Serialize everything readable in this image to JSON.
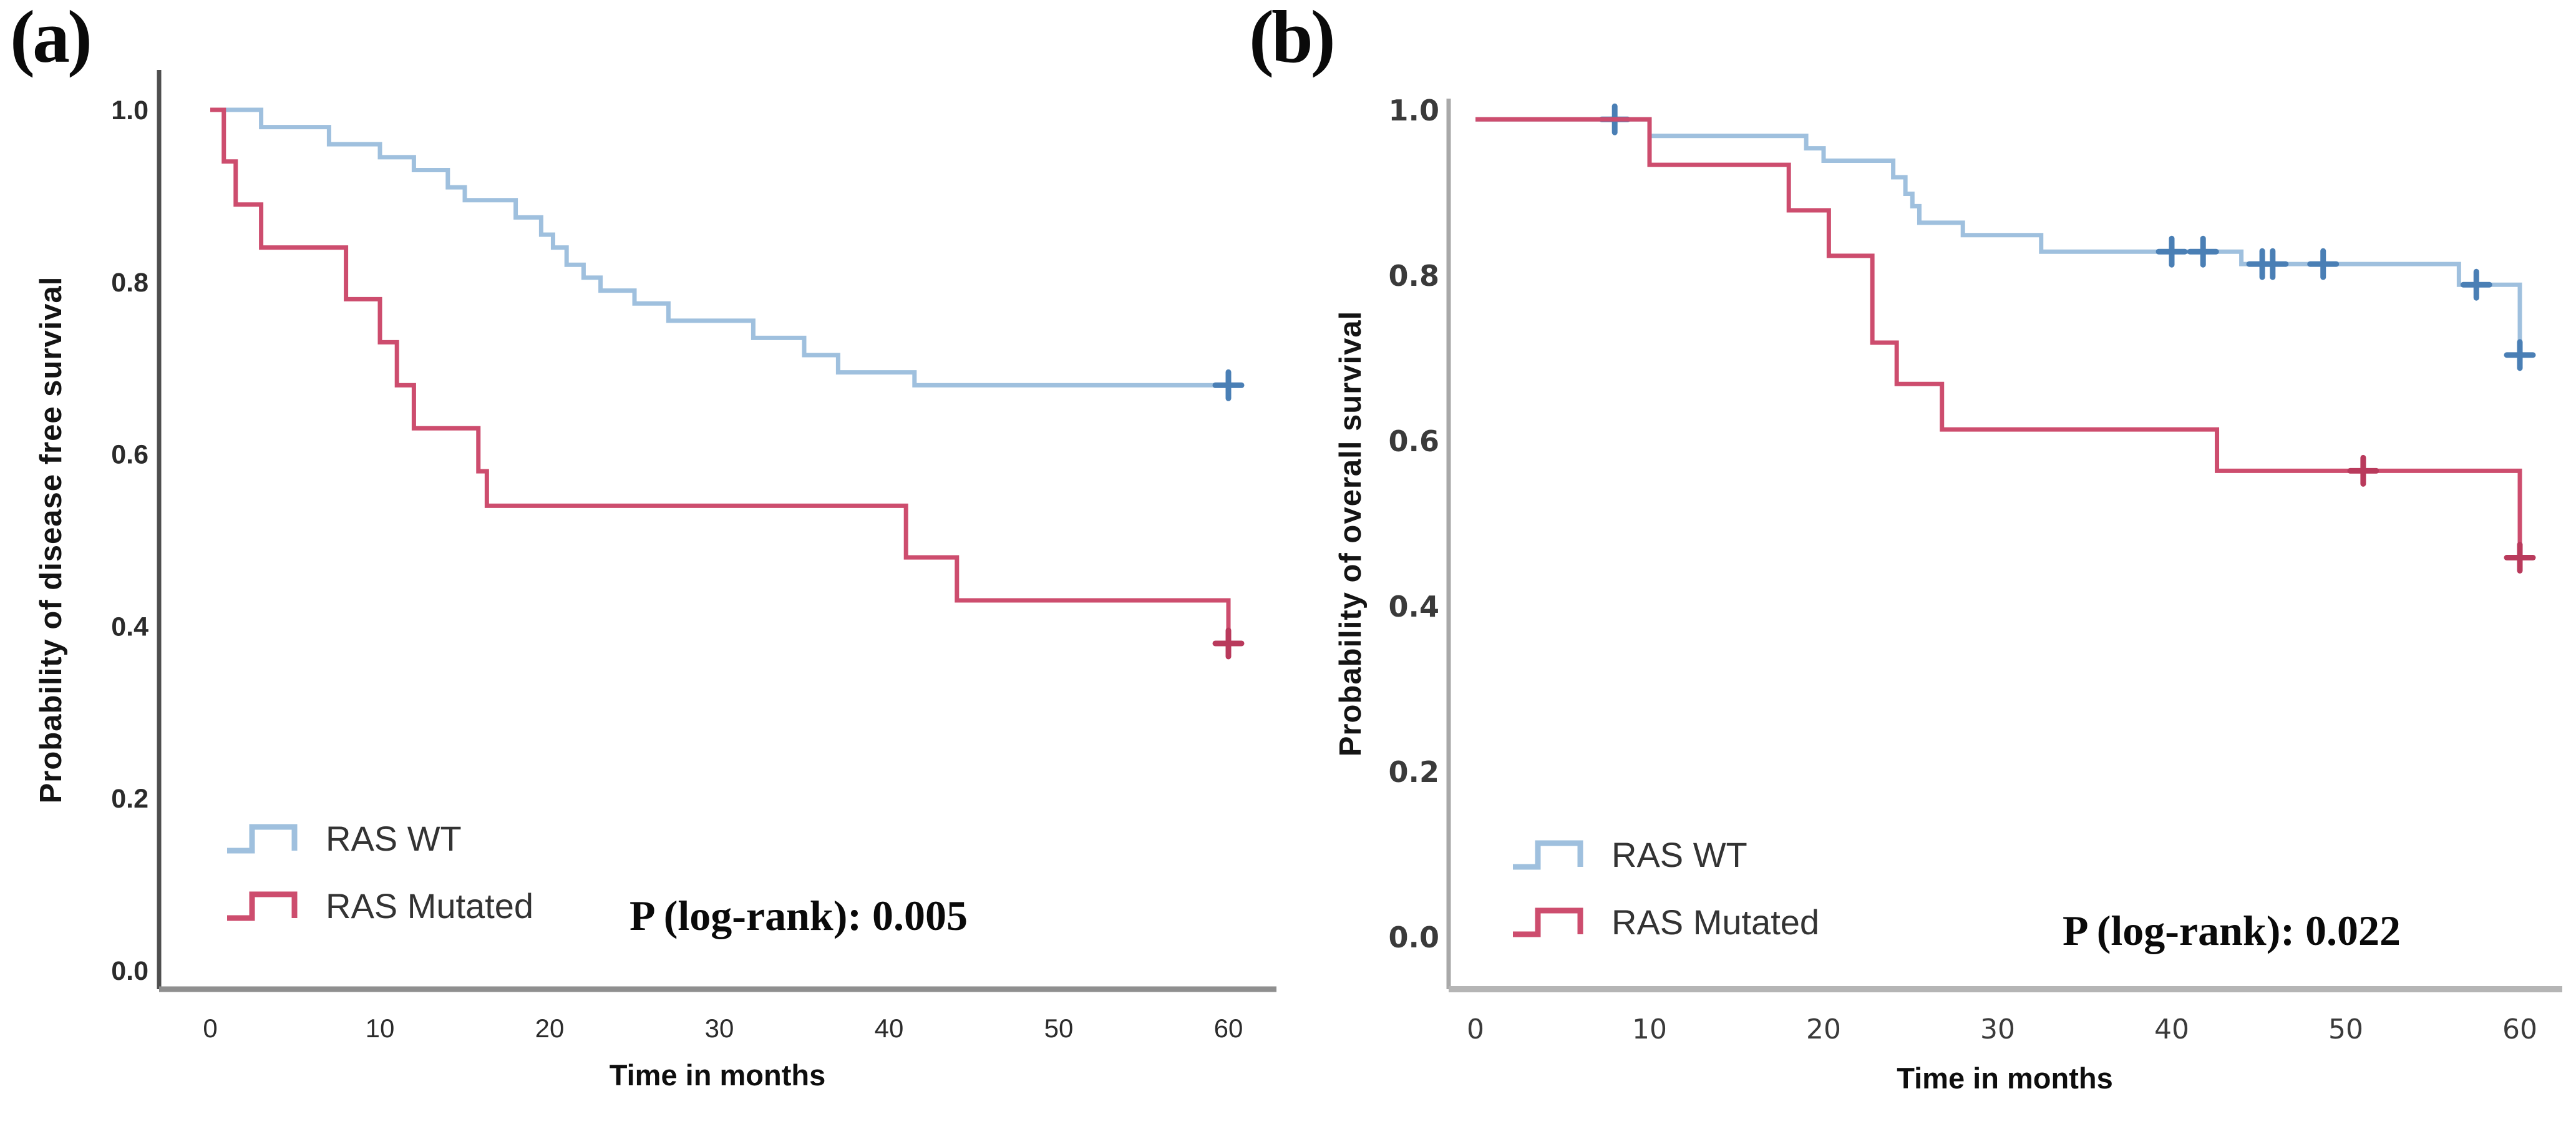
{
  "figure": {
    "background": "#ffffff",
    "description_labels": {
      "panel_a": "(a)",
      "panel_b": "(b)"
    }
  },
  "chart_data": [
    {
      "type": "line",
      "line_style": "step-after",
      "corner_label": "(a)",
      "ylabel": "Probability of disease free survival",
      "xlabel": "Time in months",
      "p_label": "P (log-rank): 0.005",
      "x_ticks": [
        "0",
        "10",
        "20",
        "30",
        "40",
        "50",
        "60"
      ],
      "y_ticks": [
        "1.0",
        "0.8",
        "0.6",
        "0.4",
        "0.2",
        "0.0"
      ],
      "xlim": [
        0,
        60
      ],
      "ylim": [
        0.0,
        1.0
      ],
      "grid": false,
      "legend_position": "lower-left",
      "axis_colors": {
        "y_axis": "#4f4f4f",
        "x_axis": "#8f8f8f",
        "tick_text": "#2b2b2b"
      },
      "series": [
        {
          "name": "RAS WT",
          "color": "#9fc0de",
          "censor_color": "#4a7fb5",
          "steps": [
            [
              0,
              1.0
            ],
            [
              3,
              0.98
            ],
            [
              7,
              0.96
            ],
            [
              10,
              0.945
            ],
            [
              12,
              0.93
            ],
            [
              14,
              0.91
            ],
            [
              15,
              0.895
            ],
            [
              18,
              0.875
            ],
            [
              19.5,
              0.855
            ],
            [
              20.2,
              0.84
            ],
            [
              21,
              0.82
            ],
            [
              22,
              0.805
            ],
            [
              23,
              0.79
            ],
            [
              25,
              0.775
            ],
            [
              27,
              0.755
            ],
            [
              32,
              0.735
            ],
            [
              35,
              0.715
            ],
            [
              37,
              0.695
            ],
            [
              41.5,
              0.68
            ]
          ],
          "censors": [
            [
              60,
              0.68
            ]
          ]
        },
        {
          "name": "RAS Mutated",
          "color": "#cd4d6e",
          "censor_color": "#b93a5c",
          "steps": [
            [
              0,
              1.0
            ],
            [
              0.8,
              0.94
            ],
            [
              1.5,
              0.89
            ],
            [
              3,
              0.84
            ],
            [
              8,
              0.78
            ],
            [
              10,
              0.73
            ],
            [
              11,
              0.68
            ],
            [
              12,
              0.63
            ],
            [
              15.8,
              0.58
            ],
            [
              16.3,
              0.54
            ],
            [
              41,
              0.48
            ],
            [
              44,
              0.43
            ],
            [
              60,
              0.38
            ]
          ],
          "censors": [
            [
              60,
              0.38
            ]
          ]
        }
      ]
    },
    {
      "type": "line",
      "line_style": "step-after",
      "corner_label": "(b)",
      "ylabel": "Probability of overall survival",
      "xlabel": "Time in months",
      "p_label": "P (log-rank): 0.022",
      "x_ticks": [
        "0",
        "10",
        "20",
        "30",
        "40",
        "50",
        "60"
      ],
      "y_ticks": [
        "1.0",
        "0.8",
        "0.6",
        "0.4",
        "0.2",
        "0.0"
      ],
      "xlim": [
        0,
        60
      ],
      "ylim": [
        0.0,
        1.0
      ],
      "grid": false,
      "legend_position": "lower-left",
      "axis_colors": {
        "y_axis": "#a9a9a9",
        "x_axis": "#b5b5b5",
        "tick_text": "#3a3a3a"
      },
      "series": [
        {
          "name": "RAS WT",
          "color": "#9fc0de",
          "censor_color": "#4a7fb5",
          "steps": [
            [
              0,
              0.99
            ],
            [
              10,
              0.97
            ],
            [
              19,
              0.955
            ],
            [
              20,
              0.94
            ],
            [
              24,
              0.92
            ],
            [
              24.7,
              0.9
            ],
            [
              25.1,
              0.885
            ],
            [
              25.5,
              0.865
            ],
            [
              28,
              0.85
            ],
            [
              32.5,
              0.83
            ],
            [
              44,
              0.815
            ],
            [
              56.5,
              0.79
            ],
            [
              60,
              0.705
            ]
          ],
          "censors": [
            [
              8,
              0.99
            ],
            [
              40,
              0.83
            ],
            [
              41.8,
              0.83
            ],
            [
              45.2,
              0.815
            ],
            [
              45.8,
              0.815
            ],
            [
              48.7,
              0.815
            ],
            [
              57.5,
              0.79
            ],
            [
              60,
              0.705
            ]
          ]
        },
        {
          "name": "RAS Mutated",
          "color": "#cd4d6e",
          "censor_color": "#b93a5c",
          "steps": [
            [
              0,
              0.99
            ],
            [
              10,
              0.935
            ],
            [
              18,
              0.88
            ],
            [
              20.3,
              0.825
            ],
            [
              22.8,
              0.72
            ],
            [
              24.2,
              0.67
            ],
            [
              26.8,
              0.615
            ],
            [
              42.6,
              0.565
            ],
            [
              60,
              0.46
            ]
          ],
          "censors": [
            [
              51,
              0.565
            ],
            [
              60,
              0.46
            ]
          ]
        }
      ]
    }
  ]
}
